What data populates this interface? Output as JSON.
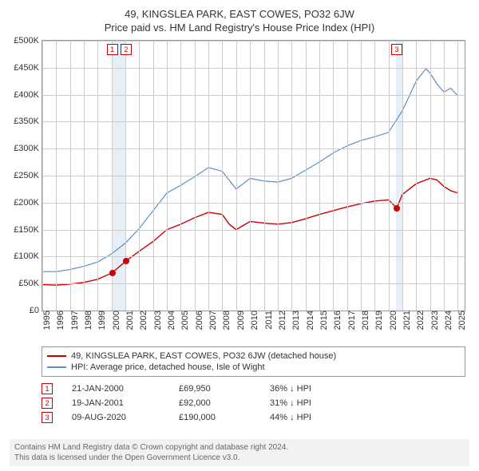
{
  "title": "49, KINGSLEA PARK, EAST COWES, PO32 6JW",
  "subtitle": "Price paid vs. HM Land Registry's House Price Index (HPI)",
  "chart": {
    "type": "line",
    "background_color": "#ffffff",
    "grid_color": "#cccccc",
    "border_color": "#999999",
    "ylim": [
      0,
      500000
    ],
    "ytick_step": 50000,
    "yticks": [
      "£0",
      "£50K",
      "£100K",
      "£150K",
      "£200K",
      "£250K",
      "£300K",
      "£350K",
      "£400K",
      "£450K",
      "£500K"
    ],
    "xlim": [
      1995,
      2025.5
    ],
    "xticks": [
      "1995",
      "1996",
      "1997",
      "1998",
      "1999",
      "2000",
      "2001",
      "2002",
      "2003",
      "2004",
      "2005",
      "2006",
      "2007",
      "2008",
      "2009",
      "2010",
      "2011",
      "2012",
      "2013",
      "2014",
      "2015",
      "2016",
      "2017",
      "2018",
      "2019",
      "2020",
      "2021",
      "2022",
      "2023",
      "2024",
      "2025"
    ],
    "band_color": "#e6eef7",
    "bands": [
      {
        "from": 2000.0,
        "to": 2001.05
      },
      {
        "from": 2020.55,
        "to": 2021.0
      }
    ],
    "series": [
      {
        "name": "property",
        "label": "49, KINGSLEA PARK, EAST COWES, PO32 6JW (detached house)",
        "color": "#cc0000",
        "line_width": 1.4,
        "points": [
          [
            1995.0,
            48000
          ],
          [
            1996.0,
            47000
          ],
          [
            1997.0,
            49000
          ],
          [
            1998.0,
            52000
          ],
          [
            1999.0,
            58000
          ],
          [
            2000.05,
            69950
          ],
          [
            2001.05,
            92000
          ],
          [
            2002.0,
            110000
          ],
          [
            2003.0,
            128000
          ],
          [
            2004.0,
            150000
          ],
          [
            2005.0,
            160000
          ],
          [
            2006.0,
            172000
          ],
          [
            2007.0,
            182000
          ],
          [
            2008.0,
            178000
          ],
          [
            2008.5,
            160000
          ],
          [
            2009.0,
            150000
          ],
          [
            2010.0,
            165000
          ],
          [
            2011.0,
            162000
          ],
          [
            2012.0,
            160000
          ],
          [
            2013.0,
            163000
          ],
          [
            2014.0,
            170000
          ],
          [
            2015.0,
            178000
          ],
          [
            2016.0,
            185000
          ],
          [
            2017.0,
            192000
          ],
          [
            2018.0,
            198000
          ],
          [
            2019.0,
            203000
          ],
          [
            2020.0,
            205000
          ],
          [
            2020.6,
            190000
          ],
          [
            2021.0,
            215000
          ],
          [
            2022.0,
            235000
          ],
          [
            2023.0,
            245000
          ],
          [
            2023.5,
            242000
          ],
          [
            2024.0,
            230000
          ],
          [
            2024.5,
            222000
          ],
          [
            2025.0,
            218000
          ]
        ]
      },
      {
        "name": "hpi",
        "label": "HPI: Average price, detached house, Isle of Wight",
        "color": "#5b8fc7",
        "line_width": 1.2,
        "points": [
          [
            1995.0,
            72000
          ],
          [
            1996.0,
            72000
          ],
          [
            1997.0,
            76000
          ],
          [
            1998.0,
            82000
          ],
          [
            1999.0,
            90000
          ],
          [
            2000.0,
            105000
          ],
          [
            2001.0,
            125000
          ],
          [
            2002.0,
            152000
          ],
          [
            2003.0,
            185000
          ],
          [
            2004.0,
            218000
          ],
          [
            2005.0,
            232000
          ],
          [
            2006.0,
            248000
          ],
          [
            2007.0,
            265000
          ],
          [
            2008.0,
            258000
          ],
          [
            2009.0,
            225000
          ],
          [
            2010.0,
            245000
          ],
          [
            2011.0,
            240000
          ],
          [
            2012.0,
            238000
          ],
          [
            2013.0,
            245000
          ],
          [
            2014.0,
            260000
          ],
          [
            2015.0,
            275000
          ],
          [
            2016.0,
            292000
          ],
          [
            2017.0,
            305000
          ],
          [
            2018.0,
            315000
          ],
          [
            2019.0,
            322000
          ],
          [
            2020.0,
            330000
          ],
          [
            2021.0,
            370000
          ],
          [
            2022.0,
            425000
          ],
          [
            2022.7,
            448000
          ],
          [
            2023.0,
            440000
          ],
          [
            2023.5,
            420000
          ],
          [
            2024.0,
            405000
          ],
          [
            2024.5,
            412000
          ],
          [
            2025.0,
            398000
          ]
        ]
      }
    ],
    "sale_markers": [
      {
        "n": "1",
        "x": 2000.05,
        "y": 69950,
        "box_top": true
      },
      {
        "n": "2",
        "x": 2001.05,
        "y": 92000,
        "box_top": true
      },
      {
        "n": "3",
        "x": 2020.6,
        "y": 190000,
        "box_top": true
      }
    ],
    "marker_box_border": "#cc0000",
    "marker_dot_color": "#cc0000",
    "label_fontsize": 11
  },
  "legend": {
    "border_color": "#999999",
    "items": [
      {
        "color": "#cc0000",
        "label": "49, KINGSLEA PARK, EAST COWES, PO32 6JW (detached house)"
      },
      {
        "color": "#5b8fc7",
        "label": "HPI: Average price, detached house, Isle of Wight"
      }
    ]
  },
  "sales": [
    {
      "n": "1",
      "date": "21-JAN-2000",
      "price": "£69,950",
      "note": "36% ↓ HPI"
    },
    {
      "n": "2",
      "date": "19-JAN-2001",
      "price": "£92,000",
      "note": "31% ↓ HPI"
    },
    {
      "n": "3",
      "date": "09-AUG-2020",
      "price": "£190,000",
      "note": "44% ↓ HPI"
    }
  ],
  "footer": {
    "line1": "Contains HM Land Registry data © Crown copyright and database right 2024.",
    "line2": "This data is licensed under the Open Government Licence v3.0.",
    "background_color": "#f2f2f2",
    "text_color": "#666666"
  }
}
